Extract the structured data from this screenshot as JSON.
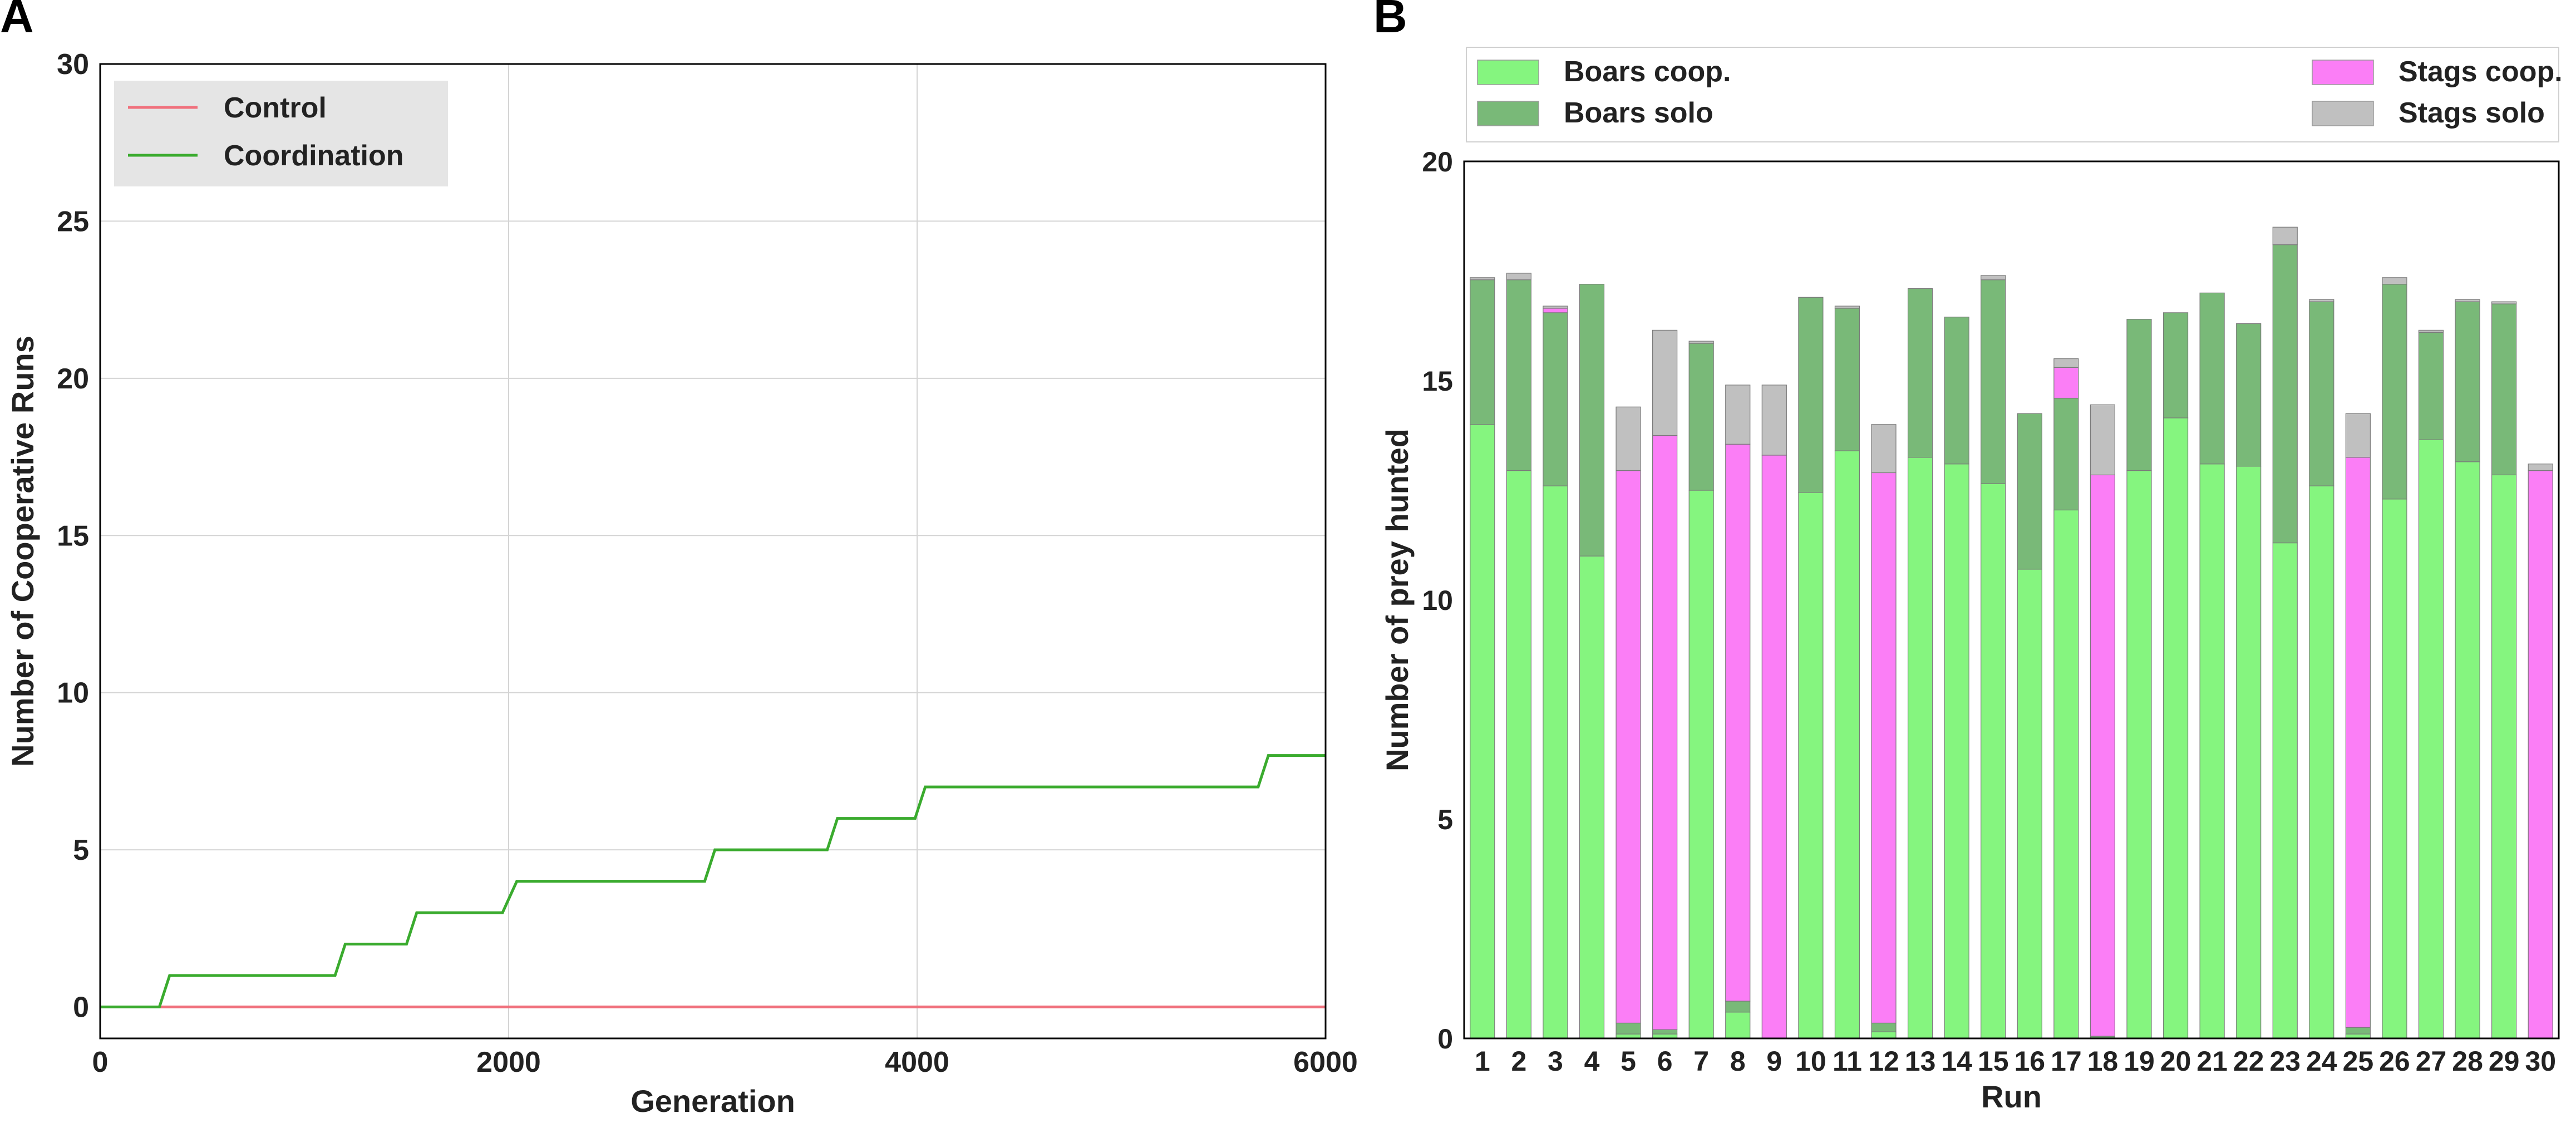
{
  "panels": {
    "a_letter": "A",
    "b_letter": "B"
  },
  "chart_data": [
    {
      "type": "line",
      "panel": "A",
      "xlabel": "Generation",
      "ylabel": "Number of Cooperative Runs",
      "xlim": [
        0,
        6000
      ],
      "ylim": [
        -1,
        30
      ],
      "xticks": [
        0,
        2000,
        4000,
        6000
      ],
      "yticks": [
        0,
        5,
        10,
        15,
        20,
        25,
        30
      ],
      "grid": true,
      "legend_position": "top-left",
      "series": [
        {
          "name": "Control",
          "color": "#f0707c",
          "x": [
            0,
            6000
          ],
          "y": [
            0,
            0
          ]
        },
        {
          "name": "Coordination",
          "color": "#3aab2e",
          "x": [
            0,
            290,
            340,
            1150,
            1200,
            1500,
            1550,
            1970,
            2040,
            2960,
            3010,
            3560,
            3610,
            3990,
            4040,
            5670,
            5720,
            6000
          ],
          "y": [
            0,
            0,
            1,
            1,
            2,
            2,
            3,
            3,
            4,
            4,
            5,
            5,
            6,
            6,
            7,
            7,
            8,
            8
          ]
        }
      ]
    },
    {
      "type": "bar",
      "stacked": true,
      "panel": "B",
      "xlabel": "Run",
      "ylabel": "Number of prey hunted",
      "ylim": [
        0,
        20
      ],
      "yticks": [
        0,
        5,
        10,
        15,
        20
      ],
      "grid": false,
      "legend_position": "top",
      "categories": [
        "1",
        "2",
        "3",
        "4",
        "5",
        "6",
        "7",
        "8",
        "9",
        "10",
        "11",
        "12",
        "13",
        "14",
        "15",
        "16",
        "17",
        "18",
        "19",
        "20",
        "21",
        "22",
        "23",
        "24",
        "25",
        "26",
        "27",
        "28",
        "29",
        "30"
      ],
      "series": [
        {
          "name": "Boars coop.",
          "color": "#85f57f",
          "values": [
            14.0,
            12.95,
            12.6,
            11.0,
            0.1,
            0.1,
            12.5,
            0.6,
            0.0,
            12.45,
            13.4,
            0.15,
            13.25,
            13.1,
            12.65,
            10.7,
            12.05,
            0.0,
            12.95,
            14.15,
            13.1,
            13.05,
            11.3,
            12.6,
            0.1,
            12.3,
            13.65,
            13.15,
            12.85,
            0.0
          ]
        },
        {
          "name": "Boars solo",
          "color": "#79b978",
          "values": [
            3.3,
            4.35,
            3.95,
            6.2,
            0.25,
            0.1,
            3.35,
            0.25,
            0.0,
            4.45,
            3.25,
            0.2,
            3.85,
            3.35,
            4.65,
            3.55,
            2.55,
            0.05,
            3.45,
            2.4,
            3.9,
            3.25,
            6.8,
            4.2,
            0.15,
            4.9,
            2.45,
            3.65,
            3.9,
            0.0
          ]
        },
        {
          "name": "Stags coop.",
          "color": "#fb7ef6",
          "values": [
            0.0,
            0.0,
            0.1,
            0.0,
            12.6,
            13.55,
            0.0,
            12.7,
            13.3,
            0.0,
            0.0,
            12.55,
            0.0,
            0.0,
            0.0,
            0.0,
            0.7,
            12.8,
            0.0,
            0.0,
            0.0,
            0.0,
            0.0,
            0.0,
            13.0,
            0.0,
            0.0,
            0.0,
            0.0,
            12.95
          ]
        },
        {
          "name": "Stags solo",
          "color": "#c0c0c0",
          "values": [
            0.05,
            0.15,
            0.05,
            0.0,
            1.45,
            2.4,
            0.05,
            1.35,
            1.6,
            0.0,
            0.05,
            1.1,
            0.0,
            0.0,
            0.1,
            0.0,
            0.2,
            1.6,
            0.0,
            0.0,
            0.0,
            0.0,
            0.4,
            0.05,
            1.0,
            0.15,
            0.05,
            0.05,
            0.05,
            0.15
          ]
        }
      ]
    }
  ]
}
